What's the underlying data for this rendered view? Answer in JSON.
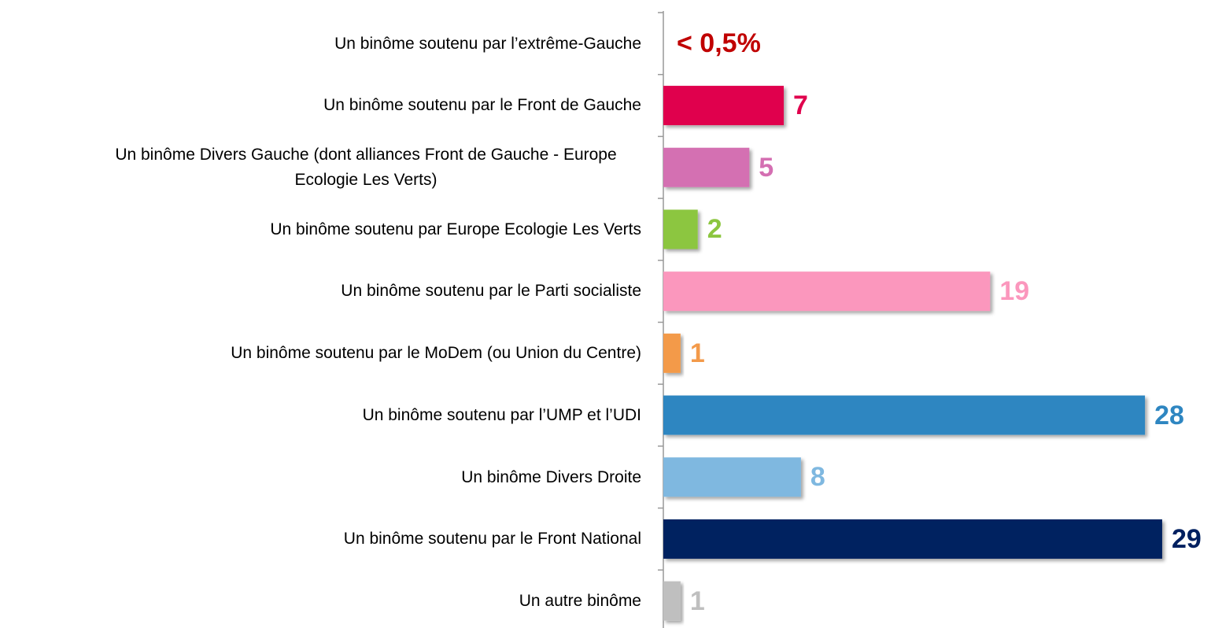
{
  "chart_data": {
    "type": "hbar",
    "categories": [
      "Un binôme soutenu par l’extrême-Gauche",
      "Un binôme soutenu par le Front de Gauche",
      "Un binôme Divers Gauche (dont alliances Front de Gauche - Europe Ecologie Les Verts)",
      "Un binôme soutenu par Europe Ecologie Les Verts",
      "Un binôme soutenu par le Parti socialiste",
      "Un binôme soutenu par le MoDem (ou Union du Centre)",
      "Un binôme soutenu par l’UMP et l’UDI",
      "Un binôme Divers Droite",
      "Un binôme soutenu par le Front National",
      "Un autre binôme"
    ],
    "values": [
      null,
      7,
      5,
      2,
      19,
      1,
      28,
      8,
      29,
      1
    ],
    "value_labels": [
      "< 0,5%",
      "7",
      "5",
      "2",
      "19",
      "1",
      "28",
      "8",
      "29",
      "1"
    ],
    "colors": [
      "#c00000",
      "#e0004d",
      "#d46fb2",
      "#8cc63f",
      "#fb97bd",
      "#f39a4a",
      "#2e86c1",
      "#7fb8e0",
      "#002060",
      "#bfbfbf"
    ],
    "xlim": [
      0,
      30
    ]
  }
}
